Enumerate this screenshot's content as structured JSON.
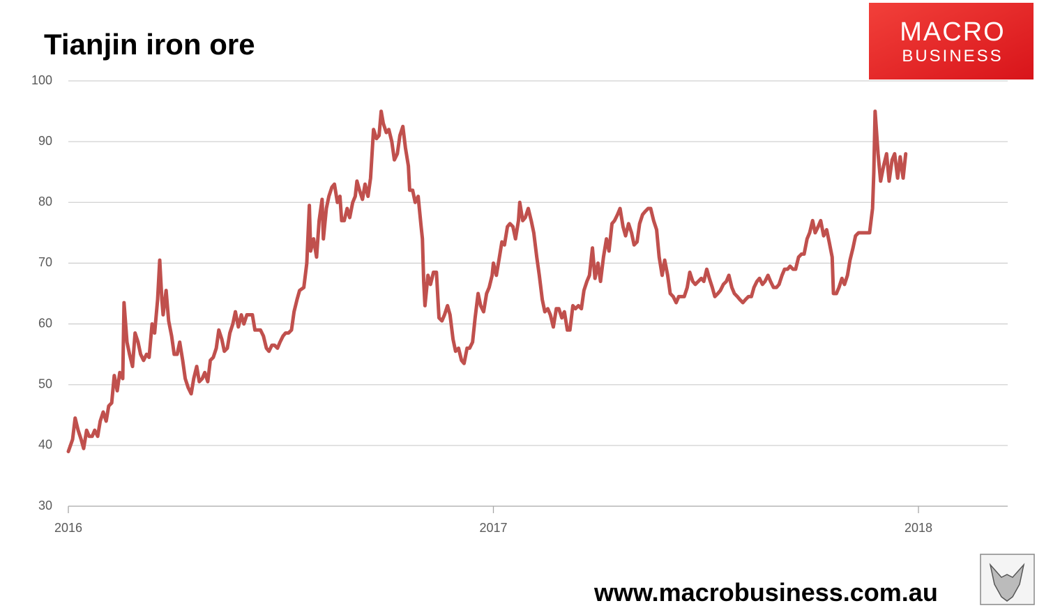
{
  "chart_data": {
    "type": "line",
    "title": "Tianjin iron ore",
    "logo": [
      "MACRO",
      "BUSINESS"
    ],
    "footer": "www.macrobusiness.com.au",
    "xlim": [
      2016,
      2018.21
    ],
    "xticks": [
      2016,
      2017,
      2018
    ],
    "ylim": [
      30,
      100
    ],
    "yticks": [
      30,
      40,
      50,
      60,
      70,
      80,
      90,
      100
    ],
    "grid": true,
    "series": [
      {
        "color": "#c0504d",
        "x": [
          2016.0,
          2016.01,
          2016.016,
          2016.023,
          2016.03,
          2016.036,
          2016.043,
          2016.049,
          2016.056,
          2016.062,
          2016.069,
          2016.075,
          2016.082,
          2016.089,
          2016.095,
          2016.102,
          2016.108,
          2016.115,
          2016.121,
          2016.128,
          2016.131,
          2016.138,
          2016.144,
          2016.151,
          2016.157,
          2016.164,
          2016.17,
          2016.177,
          2016.184,
          2016.19,
          2016.197,
          2016.203,
          2016.21,
          2016.215,
          2016.22,
          2016.223,
          2016.23,
          2016.236,
          2016.243,
          2016.249,
          2016.256,
          2016.262,
          2016.269,
          2016.275,
          2016.282,
          2016.289,
          2016.295,
          2016.302,
          2016.308,
          2016.315,
          2016.321,
          2016.328,
          2016.334,
          2016.341,
          2016.348,
          2016.354,
          2016.361,
          2016.367,
          2016.374,
          2016.38,
          2016.387,
          2016.393,
          2016.4,
          2016.407,
          2016.413,
          2016.42,
          2016.426,
          2016.433,
          2016.439,
          2016.446,
          2016.452,
          2016.459,
          2016.466,
          2016.472,
          2016.479,
          2016.485,
          2016.492,
          2016.498,
          2016.505,
          2016.511,
          2016.518,
          2016.525,
          2016.531,
          2016.538,
          2016.544,
          2016.554,
          2016.561,
          2016.567,
          2016.57,
          2016.577,
          2016.584,
          2016.59,
          2016.597,
          2016.6,
          2016.607,
          2016.613,
          2016.62,
          2016.626,
          2016.633,
          2016.639,
          2016.643,
          2016.649,
          2016.656,
          2016.662,
          2016.669,
          2016.675,
          2016.679,
          2016.685,
          2016.692,
          2016.698,
          2016.705,
          2016.711,
          2016.718,
          2016.725,
          2016.731,
          2016.736,
          2016.741,
          2016.748,
          2016.754,
          2016.761,
          2016.767,
          2016.774,
          2016.78,
          2016.787,
          2016.793,
          2016.8,
          2016.803,
          2016.81,
          2016.816,
          2016.823,
          2016.83,
          2016.833,
          2016.836,
          2016.839,
          2016.846,
          2016.852,
          2016.859,
          2016.866,
          2016.872,
          2016.879,
          2016.885,
          2016.892,
          2016.898,
          2016.905,
          2016.911,
          2016.918,
          2016.925,
          2016.931,
          2016.938,
          2016.944,
          2016.951,
          2016.957,
          2016.964,
          2016.97,
          2016.977,
          2016.984,
          2016.99,
          2016.997,
          2017.0,
          2017.007,
          2017.013,
          2017.02,
          2017.026,
          2017.033,
          2017.039,
          2017.046,
          2017.052,
          2017.059,
          2017.062,
          2017.069,
          2017.075,
          2017.082,
          2017.089,
          2017.095,
          2017.102,
          2017.108,
          2017.115,
          2017.121,
          2017.128,
          2017.134,
          2017.141,
          2017.148,
          2017.154,
          2017.161,
          2017.167,
          2017.174,
          2017.18,
          2017.187,
          2017.193,
          2017.2,
          2017.207,
          2017.213,
          2017.22,
          2017.226,
          2017.233,
          2017.239,
          2017.246,
          2017.252,
          2017.259,
          2017.266,
          2017.272,
          2017.279,
          2017.285,
          2017.292,
          2017.298,
          2017.305,
          2017.311,
          2017.318,
          2017.325,
          2017.331,
          2017.338,
          2017.344,
          2017.351,
          2017.357,
          2017.364,
          2017.37,
          2017.377,
          2017.384,
          2017.39,
          2017.397,
          2017.403,
          2017.41,
          2017.416,
          2017.423,
          2017.43,
          2017.436,
          2017.443,
          2017.449,
          2017.456,
          2017.462,
          2017.469,
          2017.475,
          2017.482,
          2017.489,
          2017.495,
          2017.502,
          2017.508,
          2017.515,
          2017.521,
          2017.528,
          2017.534,
          2017.541,
          2017.548,
          2017.554,
          2017.561,
          2017.567,
          2017.574,
          2017.58,
          2017.587,
          2017.593,
          2017.6,
          2017.607,
          2017.613,
          2017.62,
          2017.626,
          2017.633,
          2017.639,
          2017.646,
          2017.652,
          2017.659,
          2017.666,
          2017.672,
          2017.679,
          2017.685,
          2017.692,
          2017.698,
          2017.705,
          2017.711,
          2017.718,
          2017.725,
          2017.731,
          2017.738,
          2017.744,
          2017.751,
          2017.757,
          2017.764,
          2017.77,
          2017.777,
          2017.784,
          2017.79,
          2017.797,
          2017.8,
          2017.807,
          2017.813,
          2017.82,
          2017.826,
          2017.833,
          2017.839,
          2017.846,
          2017.852,
          2017.859,
          2017.866,
          2017.872,
          2017.879,
          2017.885,
          2017.892,
          2017.895,
          2017.898,
          2017.905,
          2017.911,
          2017.918,
          2017.925,
          2017.931,
          2017.938,
          2017.944,
          2017.951,
          2017.957,
          2017.964,
          2017.97
        ],
        "values": [
          39,
          41,
          44.5,
          42.5,
          41,
          39.5,
          42.5,
          41.5,
          41.5,
          42.5,
          41.5,
          44,
          45.5,
          44,
          46.5,
          47,
          51.5,
          49,
          52,
          51,
          63.5,
          57,
          55,
          53,
          58.5,
          57,
          55,
          54,
          55,
          54.5,
          60,
          58.5,
          64,
          70.5,
          64,
          61.5,
          65.5,
          60.5,
          58,
          55,
          55,
          57,
          54,
          51,
          49.5,
          48.5,
          51,
          53,
          50.5,
          51,
          52,
          50.5,
          54,
          54.5,
          56,
          59,
          57.5,
          55.5,
          56,
          58.5,
          60,
          62,
          59.5,
          61.5,
          60,
          61.5,
          61.5,
          61.5,
          59,
          59,
          59,
          58,
          56,
          55.5,
          56.5,
          56.5,
          56,
          57,
          58,
          58.5,
          58.5,
          59,
          62,
          64,
          65.5,
          66,
          70,
          79.5,
          72,
          74,
          71,
          77,
          80.5,
          74,
          79,
          81,
          82.5,
          83,
          80,
          81,
          77,
          77,
          79,
          77.5,
          80,
          81,
          83.5,
          82,
          80.5,
          83,
          81,
          84,
          92,
          90.5,
          91,
          95,
          93,
          91.5,
          92,
          90,
          87,
          88,
          91,
          92.5,
          89,
          86,
          82,
          82,
          80,
          81,
          76,
          74,
          67,
          63,
          68,
          66.5,
          68.5,
          68.5,
          61,
          60.5,
          61.5,
          63,
          61.5,
          57.5,
          55.5,
          56,
          54,
          53.5,
          56,
          56,
          57,
          61,
          65,
          63,
          62,
          65,
          66,
          68,
          70,
          68,
          70.5,
          73.5,
          73,
          76,
          76.5,
          76,
          74,
          77,
          80,
          77,
          77.5,
          79,
          77,
          75,
          71,
          68,
          64,
          62,
          62.5,
          61.5,
          59.5,
          62.5,
          62.5,
          61,
          62,
          59,
          59,
          63,
          62.5,
          63,
          62.5,
          65.5,
          67,
          68,
          72.5,
          67.5,
          70,
          67,
          71,
          74,
          72,
          76.5,
          77,
          78,
          79,
          76,
          74.5,
          76.5,
          75,
          73,
          73.5,
          76.5,
          78,
          78.5,
          79,
          79,
          77,
          75.5,
          71,
          68,
          70.5,
          68,
          65,
          64.5,
          63.5,
          64.5,
          64.5,
          64.5,
          66,
          68.5,
          67,
          66.5,
          67,
          67.5,
          67,
          69,
          67.5,
          66,
          64.5,
          65,
          65.5,
          66.5,
          67,
          68,
          66,
          65,
          64.5,
          64,
          63.5,
          64,
          64.5,
          64.5,
          66,
          67,
          67.5,
          66.5,
          67,
          68,
          67,
          66,
          66,
          66.5,
          68,
          69,
          69,
          69.5,
          69,
          69,
          71,
          71.5,
          71.5,
          74,
          75,
          77,
          75,
          76,
          77,
          74.5,
          75.5,
          73.5,
          71,
          65,
          65,
          66,
          67.5,
          66.5,
          68,
          70.5,
          72.5,
          74.5,
          75,
          75,
          75,
          75,
          75,
          79,
          85,
          95,
          88,
          83.5,
          86,
          88,
          83.5,
          87,
          88,
          84,
          87.5,
          84,
          88
        ]
      }
    ]
  }
}
